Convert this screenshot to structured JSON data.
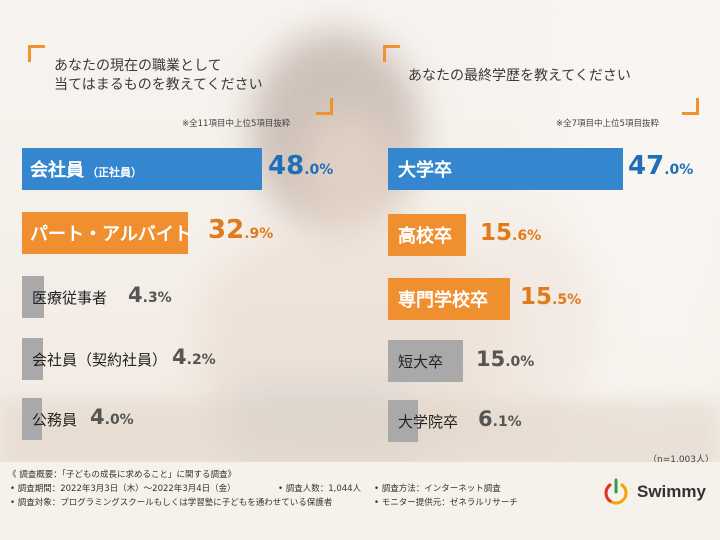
{
  "left": {
    "question_line1": "あなたの現在の職業として",
    "question_line2": "当てはまるものを教えてください",
    "note": "※全11項目中上位5項目抜粋"
  },
  "right": {
    "question": "あなたの最終学歴を教えてください",
    "note": "※全7項目中上位5項目抜粋"
  },
  "colors": {
    "blue": "#3486cf",
    "orange": "#ef8f2f",
    "gray": "#a9a9a9",
    "accent": "#f0922e"
  },
  "chart_data": [
    {
      "type": "bar",
      "title": "あなたの現在の職業として当てはまるものを教えてください",
      "categories": [
        "会社員（正社員）",
        "パート・アルバイト",
        "医療従事者",
        "会社員（契約社員）",
        "公務員"
      ],
      "values": [
        48.0,
        32.9,
        4.3,
        4.2,
        4.0
      ],
      "unit": "%"
    },
    {
      "type": "bar",
      "title": "あなたの最終学歴を教えてください",
      "categories": [
        "大学卒",
        "高校卒",
        "専門学校卒",
        "短大卒",
        "大学院卒"
      ],
      "values": [
        47.0,
        15.6,
        15.5,
        15.0,
        6.1
      ],
      "unit": "%"
    }
  ],
  "bars_left": [
    {
      "main": "会社員",
      "sub": "（正社員）",
      "int": "48",
      "dec": ".0%"
    },
    {
      "main": "パート・アルバイト",
      "sub": "",
      "int": "32",
      "dec": ".9%"
    },
    {
      "main": "医療従事者",
      "sub": "",
      "int": "4",
      "dec": ".3%"
    },
    {
      "main": "会社員（契約社員）",
      "sub": "",
      "int": "4",
      "dec": ".2%"
    },
    {
      "main": "公務員",
      "sub": "",
      "int": "4",
      "dec": ".0%"
    }
  ],
  "bars_right": [
    {
      "main": "大学卒",
      "int": "47",
      "dec": ".0%"
    },
    {
      "main": "高校卒",
      "int": "15",
      "dec": ".6%"
    },
    {
      "main": "専門学校卒",
      "int": "15",
      "dec": ".5%"
    },
    {
      "main": "短大卒",
      "int": "15",
      "dec": ".0%"
    },
    {
      "main": "大学院卒",
      "int": "6",
      "dec": ".1%"
    }
  ],
  "sample_size": "（n=1,003人）",
  "footer": {
    "title": "《 調査概要：「子どもの成長に求めること」に関する調査》",
    "period": "• 調査期間：2022年3月3日（木）～2022年3月4日（金）",
    "count": "• 調査人数：1,044人",
    "method": "• 調査方法：インターネット調査",
    "target": "• 調査対象：プログラミングスクールもしくは学習塾に子どもを通わせている保護者",
    "provider": "• モニター提供元：ゼネラルリサーチ"
  },
  "logo": {
    "text": "Swimmy",
    "icon": "power-leaf-icon"
  }
}
